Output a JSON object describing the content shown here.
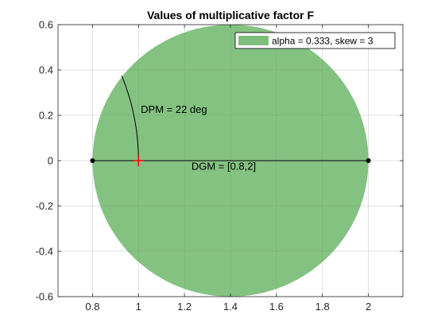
{
  "chart_data": {
    "type": "scatter",
    "title": "Values of multiplicative factor F",
    "xlabel": "",
    "ylabel": "",
    "xlim": [
      0.65,
      2.15
    ],
    "ylim": [
      -0.6,
      0.6
    ],
    "xticks": [
      0.8,
      1,
      1.2,
      1.4,
      1.6,
      1.8,
      2
    ],
    "xtick_labels": [
      "0.8",
      "1",
      "1.2",
      "1.4",
      "1.6",
      "1.8",
      "2"
    ],
    "yticks": [
      0.6,
      0.4,
      0.2,
      0,
      -0.2,
      -0.4,
      -0.6
    ],
    "ytick_labels": [
      "0.6",
      "0.4",
      "0.2",
      "0",
      "-0.2",
      "-0.4",
      "-0.6"
    ],
    "grid": true,
    "legend_position": "top-right",
    "series": [
      {
        "name": "alpha = 0.333, skew = 3",
        "kind": "filled-circle",
        "center": [
          1.4,
          0
        ],
        "radius": 0.6,
        "color": "#7dbf7b"
      }
    ],
    "segment": {
      "x": [
        0.8,
        2
      ],
      "y": [
        0,
        0
      ],
      "color": "#000000"
    },
    "endpoints": [
      {
        "x": 0.8,
        "y": 0
      },
      {
        "x": 2,
        "y": 0
      }
    ],
    "marker": {
      "x": 1,
      "y": 0,
      "symbol": "+",
      "color": "#ff0000"
    },
    "arc": {
      "center": [
        0,
        0
      ],
      "radius": 1,
      "from_deg": 0,
      "to_deg": 22,
      "color": "#000000"
    },
    "annotations": [
      {
        "text": "DPM = 22 deg",
        "x": 1.01,
        "y": 0.21
      },
      {
        "text": "DGM = [0.8,2]",
        "x": 1.23,
        "y": -0.04
      }
    ]
  }
}
